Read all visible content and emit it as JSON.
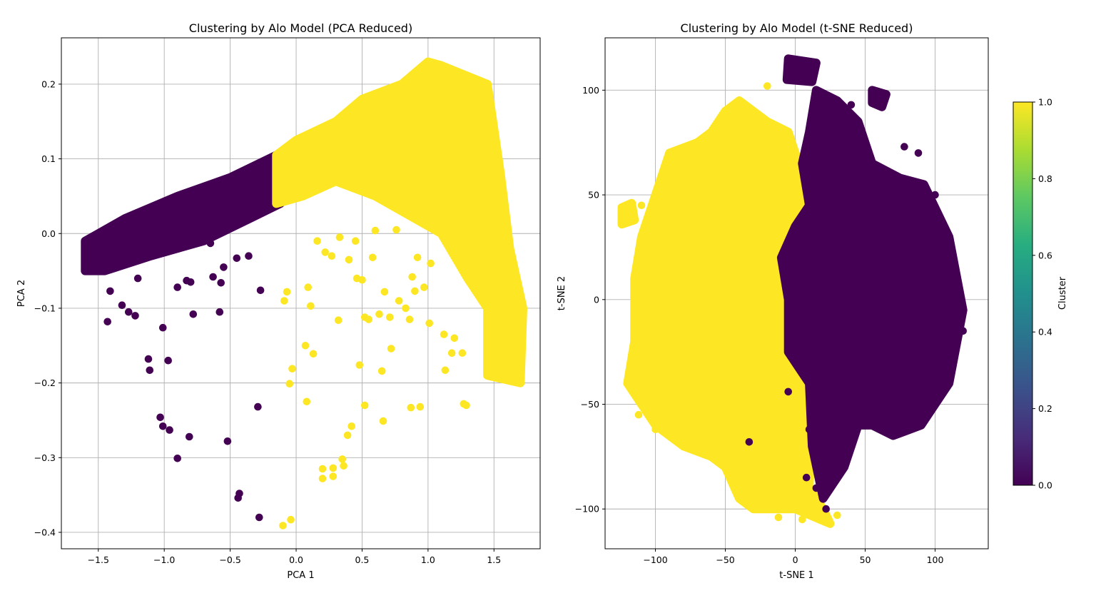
{
  "chart_data": [
    {
      "type": "scatter",
      "title": "Clustering by Alo Model (PCA Reduced)",
      "xlabel": "PCA 1",
      "ylabel": "PCA 2",
      "xlim": [
        -1.78,
        1.85
      ],
      "ylim": [
        -0.422,
        0.262
      ],
      "xticks": [
        -1.5,
        -1.0,
        -0.5,
        0.0,
        0.5,
        1.0,
        1.5
      ],
      "xtick_labels": [
        "−1.5",
        "−1.0",
        "−0.5",
        "0.0",
        "0.5",
        "1.0",
        "1.5"
      ],
      "yticks": [
        -0.4,
        -0.3,
        -0.2,
        -0.1,
        0.0,
        0.1,
        0.2
      ],
      "ytick_labels": [
        "−0.4",
        "−0.3",
        "−0.2",
        "−0.1",
        "0.0",
        "0.1",
        "0.2"
      ],
      "grid": true,
      "color_by": "Cluster",
      "dense_regions": [
        {
          "cluster": 0,
          "polygon": [
            [
              -1.6,
              -0.05
            ],
            [
              -1.6,
              -0.01
            ],
            [
              -1.3,
              0.02
            ],
            [
              -0.9,
              0.05
            ],
            [
              -0.5,
              0.075
            ],
            [
              -0.15,
              0.105
            ],
            [
              -0.12,
              0.04
            ],
            [
              -0.35,
              0.02
            ],
            [
              -0.7,
              -0.01
            ],
            [
              -1.1,
              -0.03
            ],
            [
              -1.45,
              -0.05
            ]
          ]
        },
        {
          "cluster": 1,
          "polygon": [
            [
              -0.15,
              0.105
            ],
            [
              0.0,
              0.125
            ],
            [
              0.3,
              0.15
            ],
            [
              0.5,
              0.18
            ],
            [
              0.8,
              0.2
            ],
            [
              1.0,
              0.23
            ],
            [
              1.1,
              0.225
            ],
            [
              1.45,
              0.2
            ],
            [
              1.55,
              0.08
            ],
            [
              1.62,
              -0.02
            ],
            [
              1.72,
              -0.1
            ],
            [
              1.7,
              -0.2
            ],
            [
              1.45,
              -0.19
            ],
            [
              1.45,
              -0.1
            ],
            [
              1.3,
              -0.06
            ],
            [
              1.1,
              0.0
            ],
            [
              0.6,
              0.05
            ],
            [
              0.3,
              0.07
            ],
            [
              0.05,
              0.05
            ],
            [
              -0.15,
              0.04
            ]
          ]
        }
      ],
      "points": [
        {
          "x": -1.43,
          "y": -0.118,
          "c": 0
        },
        {
          "x": -1.41,
          "y": -0.077,
          "c": 0
        },
        {
          "x": -1.32,
          "y": -0.096,
          "c": 0
        },
        {
          "x": -1.27,
          "y": -0.105,
          "c": 0
        },
        {
          "x": -1.22,
          "y": -0.11,
          "c": 0
        },
        {
          "x": -1.12,
          "y": -0.168,
          "c": 0
        },
        {
          "x": -1.11,
          "y": -0.183,
          "c": 0
        },
        {
          "x": -1.01,
          "y": -0.126,
          "c": 0
        },
        {
          "x": -0.97,
          "y": -0.17,
          "c": 0
        },
        {
          "x": -1.03,
          "y": -0.246,
          "c": 0
        },
        {
          "x": -1.01,
          "y": -0.258,
          "c": 0
        },
        {
          "x": -0.96,
          "y": -0.263,
          "c": 0
        },
        {
          "x": -0.9,
          "y": -0.301,
          "c": 0
        },
        {
          "x": -0.81,
          "y": -0.272,
          "c": 0
        },
        {
          "x": -0.78,
          "y": -0.108,
          "c": 0
        },
        {
          "x": -0.58,
          "y": -0.105,
          "c": 0
        },
        {
          "x": -0.52,
          "y": -0.278,
          "c": 0
        },
        {
          "x": -0.43,
          "y": -0.348,
          "c": 0
        },
        {
          "x": -0.44,
          "y": -0.354,
          "c": 0
        },
        {
          "x": -0.29,
          "y": -0.232,
          "c": 0
        },
        {
          "x": -0.28,
          "y": -0.38,
          "c": 0
        },
        {
          "x": -0.27,
          "y": -0.076,
          "c": 0
        },
        {
          "x": -0.9,
          "y": -0.072,
          "c": 0
        },
        {
          "x": -0.83,
          "y": -0.063,
          "c": 0
        },
        {
          "x": -0.8,
          "y": -0.065,
          "c": 0
        },
        {
          "x": -0.63,
          "y": -0.058,
          "c": 0
        },
        {
          "x": -0.57,
          "y": -0.066,
          "c": 0
        },
        {
          "x": -0.55,
          "y": -0.045,
          "c": 0
        },
        {
          "x": -0.36,
          "y": -0.03,
          "c": 0
        },
        {
          "x": -0.45,
          "y": -0.033,
          "c": 0
        },
        {
          "x": -0.65,
          "y": -0.013,
          "c": 0
        },
        {
          "x": -1.2,
          "y": -0.06,
          "c": 0
        },
        {
          "x": -0.1,
          "y": -0.391,
          "c": 1
        },
        {
          "x": -0.04,
          "y": -0.383,
          "c": 1
        },
        {
          "x": -0.09,
          "y": -0.09,
          "c": 1
        },
        {
          "x": -0.07,
          "y": -0.078,
          "c": 1
        },
        {
          "x": 0.07,
          "y": -0.15,
          "c": 1
        },
        {
          "x": 0.13,
          "y": -0.161,
          "c": 1
        },
        {
          "x": -0.03,
          "y": -0.181,
          "c": 1
        },
        {
          "x": -0.05,
          "y": -0.201,
          "c": 1
        },
        {
          "x": 0.08,
          "y": -0.225,
          "c": 1
        },
        {
          "x": 0.11,
          "y": -0.097,
          "c": 1
        },
        {
          "x": 0.09,
          "y": -0.072,
          "c": 1
        },
        {
          "x": 0.2,
          "y": -0.315,
          "c": 1
        },
        {
          "x": 0.2,
          "y": -0.328,
          "c": 1
        },
        {
          "x": 0.28,
          "y": -0.314,
          "c": 1
        },
        {
          "x": 0.28,
          "y": -0.325,
          "c": 1
        },
        {
          "x": 0.35,
          "y": -0.302,
          "c": 1
        },
        {
          "x": 0.36,
          "y": -0.311,
          "c": 1
        },
        {
          "x": 0.39,
          "y": -0.27,
          "c": 1
        },
        {
          "x": 0.42,
          "y": -0.258,
          "c": 1
        },
        {
          "x": 0.32,
          "y": -0.116,
          "c": 1
        },
        {
          "x": 0.48,
          "y": -0.176,
          "c": 1
        },
        {
          "x": 0.52,
          "y": -0.23,
          "c": 1
        },
        {
          "x": 0.55,
          "y": -0.115,
          "c": 1
        },
        {
          "x": 0.63,
          "y": -0.108,
          "c": 1
        },
        {
          "x": 0.65,
          "y": -0.184,
          "c": 1
        },
        {
          "x": 0.66,
          "y": -0.251,
          "c": 1
        },
        {
          "x": 0.71,
          "y": -0.112,
          "c": 1
        },
        {
          "x": 0.72,
          "y": -0.154,
          "c": 1
        },
        {
          "x": 0.86,
          "y": -0.115,
          "c": 1
        },
        {
          "x": 0.87,
          "y": -0.233,
          "c": 1
        },
        {
          "x": 0.94,
          "y": -0.232,
          "c": 1
        },
        {
          "x": 1.01,
          "y": -0.12,
          "c": 1
        },
        {
          "x": 1.13,
          "y": -0.183,
          "c": 1
        },
        {
          "x": 1.27,
          "y": -0.228,
          "c": 1
        },
        {
          "x": 1.29,
          "y": -0.23,
          "c": 1
        },
        {
          "x": 0.22,
          "y": -0.025,
          "c": 1
        },
        {
          "x": 0.27,
          "y": -0.03,
          "c": 1
        },
        {
          "x": 0.4,
          "y": -0.035,
          "c": 1
        },
        {
          "x": 0.46,
          "y": -0.06,
          "c": 1
        },
        {
          "x": 0.5,
          "y": -0.062,
          "c": 1
        },
        {
          "x": 0.58,
          "y": -0.032,
          "c": 1
        },
        {
          "x": 0.67,
          "y": -0.078,
          "c": 1
        },
        {
          "x": 0.78,
          "y": -0.09,
          "c": 1
        },
        {
          "x": 0.88,
          "y": -0.058,
          "c": 1
        },
        {
          "x": 0.92,
          "y": -0.032,
          "c": 1
        },
        {
          "x": 1.02,
          "y": -0.04,
          "c": 1
        },
        {
          "x": 0.9,
          "y": -0.077,
          "c": 1
        },
        {
          "x": 0.97,
          "y": -0.072,
          "c": 1
        },
        {
          "x": 1.12,
          "y": -0.135,
          "c": 1
        },
        {
          "x": 1.2,
          "y": -0.14,
          "c": 1
        },
        {
          "x": 1.26,
          "y": -0.16,
          "c": 1
        },
        {
          "x": 0.16,
          "y": -0.01,
          "c": 1
        },
        {
          "x": 0.33,
          "y": -0.005,
          "c": 1
        },
        {
          "x": 0.45,
          "y": -0.01,
          "c": 1
        },
        {
          "x": 0.6,
          "y": 0.004,
          "c": 1
        },
        {
          "x": 0.76,
          "y": 0.005,
          "c": 1
        },
        {
          "x": 0.52,
          "y": -0.112,
          "c": 1
        },
        {
          "x": 0.83,
          "y": -0.1,
          "c": 1
        },
        {
          "x": 1.18,
          "y": -0.16,
          "c": 1
        }
      ]
    },
    {
      "type": "scatter",
      "title": "Clustering by Alo Model (t-SNE Reduced)",
      "xlabel": "t-SNE 1",
      "ylabel": "t-SNE 2",
      "xlim": [
        -136,
        138
      ],
      "ylim": [
        -119,
        125
      ],
      "xticks": [
        -100,
        -50,
        0,
        50,
        100
      ],
      "xtick_labels": [
        "−100",
        "−50",
        "0",
        "50",
        "100"
      ],
      "yticks": [
        -100,
        -50,
        0,
        50,
        100
      ],
      "ytick_labels": [
        "−100",
        "−50",
        "0",
        "50",
        "100"
      ],
      "grid": true,
      "color_by": "Cluster",
      "dense_regions": [
        {
          "cluster": 1,
          "polygon": [
            [
              -115,
              10
            ],
            [
              -110,
              30
            ],
            [
              -100,
              50
            ],
            [
              -90,
              70
            ],
            [
              -70,
              75
            ],
            [
              -60,
              80
            ],
            [
              -50,
              90
            ],
            [
              -40,
              95
            ],
            [
              -20,
              85
            ],
            [
              -5,
              80
            ],
            [
              0,
              70
            ],
            [
              5,
              60
            ],
            [
              10,
              40
            ],
            [
              -5,
              30
            ],
            [
              -5,
              10
            ],
            [
              0,
              -10
            ],
            [
              5,
              -25
            ],
            [
              10,
              -30
            ],
            [
              12,
              -60
            ],
            [
              10,
              -90
            ],
            [
              20,
              -100
            ],
            [
              25,
              -107
            ],
            [
              0,
              -100
            ],
            [
              -30,
              -100
            ],
            [
              -40,
              -95
            ],
            [
              -50,
              -80
            ],
            [
              -60,
              -75
            ],
            [
              -80,
              -70
            ],
            [
              -100,
              -60
            ],
            [
              -110,
              -50
            ],
            [
              -120,
              -40
            ],
            [
              -115,
              -20
            ]
          ]
        },
        {
          "cluster": 1,
          "polygon": [
            [
              -124,
              44
            ],
            [
              -117,
              46
            ],
            [
              -115,
              38
            ],
            [
              -124,
              36
            ]
          ]
        },
        {
          "cluster": 0,
          "polygon": [
            [
              -5,
              115
            ],
            [
              15,
              113
            ],
            [
              12,
              104
            ],
            [
              -6,
              105
            ]
          ]
        },
        {
          "cluster": 0,
          "polygon": [
            [
              10,
              80
            ],
            [
              15,
              100
            ],
            [
              30,
              95
            ],
            [
              45,
              85
            ],
            [
              55,
              65
            ],
            [
              75,
              58
            ],
            [
              92,
              55
            ],
            [
              110,
              30
            ],
            [
              120,
              -5
            ],
            [
              110,
              -40
            ],
            [
              90,
              -60
            ],
            [
              70,
              -65
            ],
            [
              55,
              -60
            ],
            [
              45,
              -60
            ],
            [
              35,
              -80
            ],
            [
              20,
              -95
            ],
            [
              12,
              -70
            ],
            [
              10,
              -40
            ],
            [
              -5,
              -25
            ],
            [
              -5,
              0
            ],
            [
              -10,
              20
            ],
            [
              0,
              35
            ],
            [
              10,
              45
            ],
            [
              5,
              65
            ]
          ]
        },
        {
          "cluster": 0,
          "polygon": [
            [
              55,
              100
            ],
            [
              65,
              98
            ],
            [
              62,
              92
            ],
            [
              55,
              94
            ]
          ]
        }
      ],
      "points": [
        {
          "x": -110,
          "y": 45,
          "c": 1
        },
        {
          "x": -92,
          "y": 60,
          "c": 1
        },
        {
          "x": -84,
          "y": 68,
          "c": 1
        },
        {
          "x": -33,
          "y": -68,
          "c": 0
        },
        {
          "x": -5,
          "y": -44,
          "c": 0
        },
        {
          "x": 17,
          "y": -75,
          "c": 0
        },
        {
          "x": 15,
          "y": -90,
          "c": 0
        },
        {
          "x": 8,
          "y": -85,
          "c": 0
        },
        {
          "x": 18,
          "y": -80,
          "c": 0
        },
        {
          "x": 10,
          "y": -62,
          "c": 0
        },
        {
          "x": 22,
          "y": -100,
          "c": 0
        },
        {
          "x": 78,
          "y": 73,
          "c": 0
        },
        {
          "x": 88,
          "y": 70,
          "c": 0
        },
        {
          "x": 40,
          "y": 93,
          "c": 0
        },
        {
          "x": 22,
          "y": 95,
          "c": 0
        },
        {
          "x": 100,
          "y": 50,
          "c": 0
        },
        {
          "x": 118,
          "y": -5,
          "c": 0
        },
        {
          "x": 120,
          "y": -15,
          "c": 0
        },
        {
          "x": -20,
          "y": 102,
          "c": 1
        },
        {
          "x": -118,
          "y": -42,
          "c": 1
        },
        {
          "x": -112,
          "y": -55,
          "c": 1
        },
        {
          "x": -100,
          "y": -62,
          "c": 1
        },
        {
          "x": 30,
          "y": -103,
          "c": 1
        },
        {
          "x": -30,
          "y": -95,
          "c": 1
        },
        {
          "x": -115,
          "y": -20,
          "c": 1
        },
        {
          "x": -12,
          "y": -104,
          "c": 1
        },
        {
          "x": 5,
          "y": -105,
          "c": 1
        }
      ]
    }
  ],
  "colorbar": {
    "label": "Cluster",
    "ticks": [
      "0.0",
      "0.2",
      "0.4",
      "0.6",
      "0.8",
      "1.0"
    ],
    "colors": [
      "#440154",
      "#472c7a",
      "#3b518b",
      "#2c718e",
      "#21908d",
      "#27ad81",
      "#5cc863",
      "#aadc32",
      "#fde725"
    ]
  },
  "palette": {
    "cluster_0": "#440154",
    "cluster_1": "#fde725"
  }
}
